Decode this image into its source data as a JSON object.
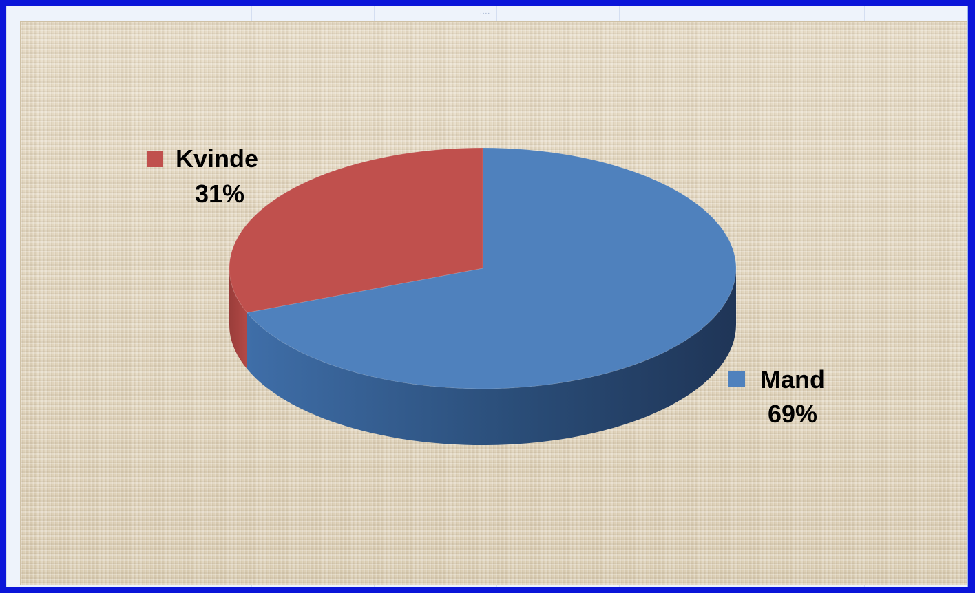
{
  "chart_data": {
    "type": "pie",
    "slices": [
      {
        "label": "Mand",
        "value": 69,
        "display": "69%",
        "color": "#4f81bd"
      },
      {
        "label": "Kvinde",
        "value": 31,
        "display": "31%",
        "color": "#c0504d"
      }
    ],
    "title": "",
    "legend": "none",
    "style": "3d-pie"
  },
  "colors": {
    "background": "#0b15d9",
    "plot_area": "#e2d6bf",
    "mand": "#4f81bd",
    "kvinde": "#c0504d",
    "mand_side": "#2c4f7a"
  }
}
